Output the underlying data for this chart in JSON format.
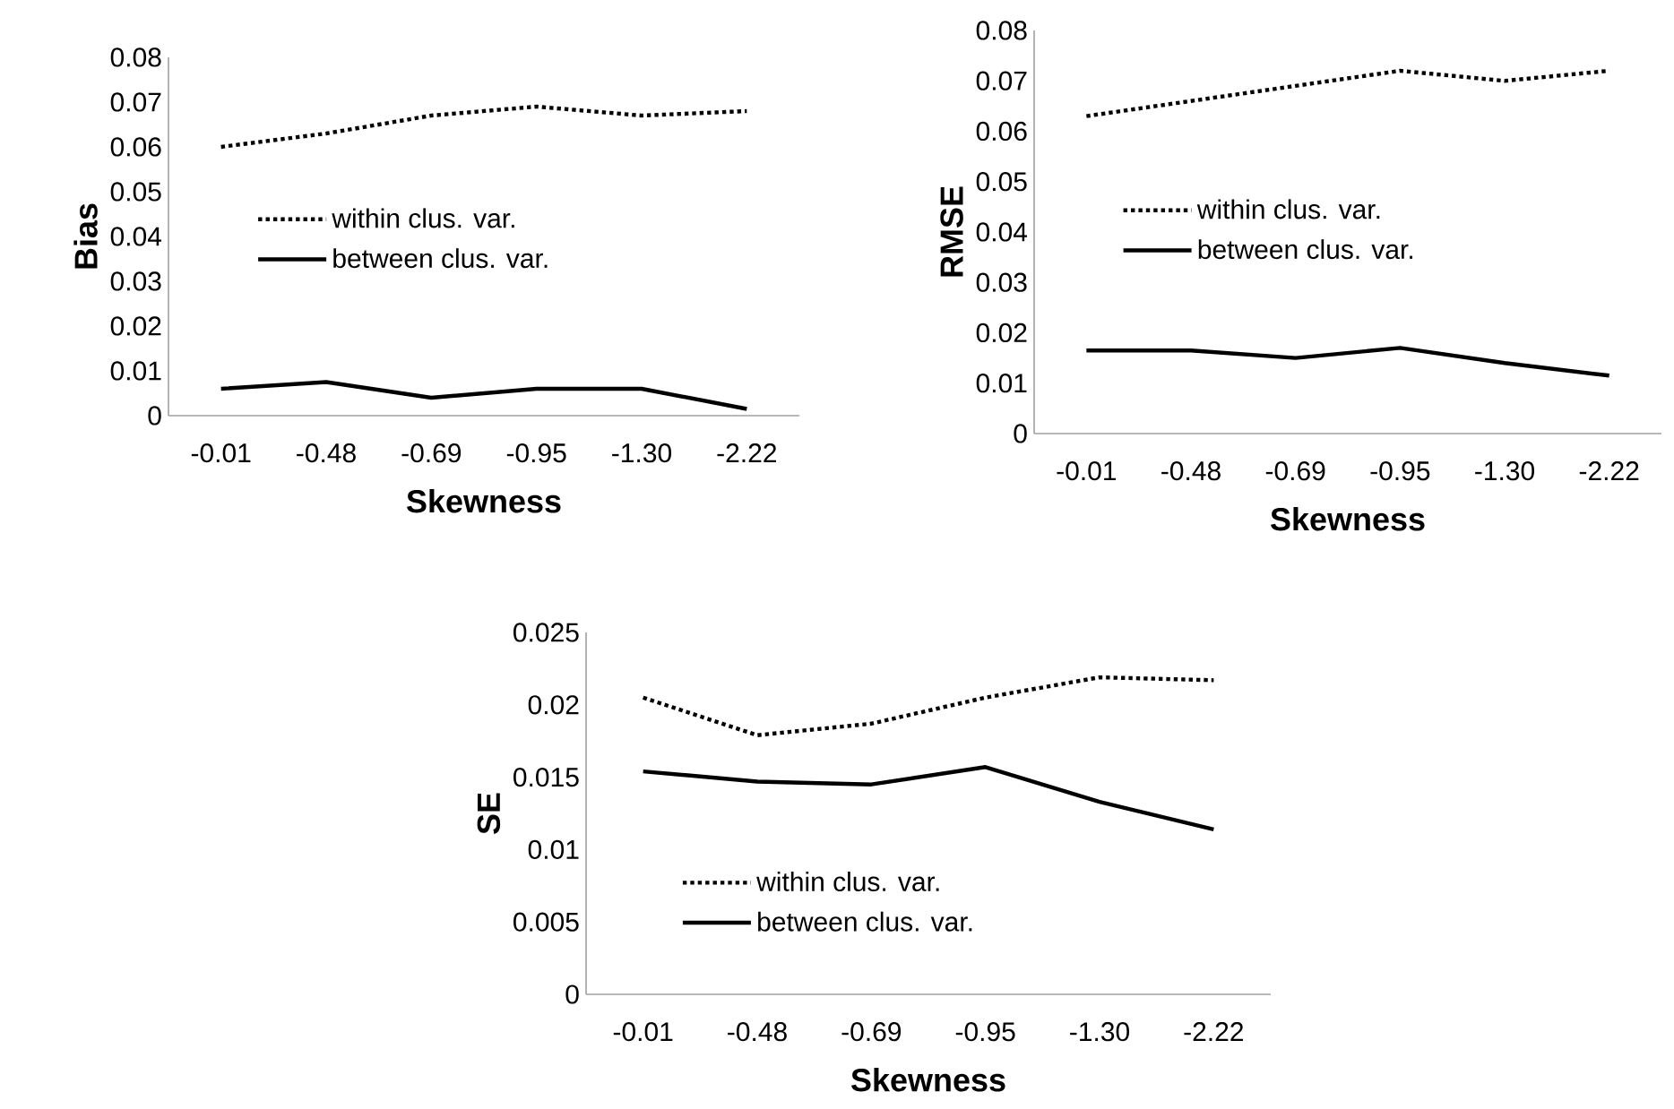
{
  "chart_data": [
    {
      "type": "line",
      "xlabel": "Skewness",
      "ylabel": "Bias",
      "categories": [
        "-0.01",
        "-0.48",
        "-0.69",
        "-0.95",
        "-1.30",
        "-2.22"
      ],
      "ylim": [
        0,
        0.08
      ],
      "yticks": [
        0,
        0.01,
        0.02,
        0.03,
        0.04,
        0.05,
        0.06,
        0.07,
        0.08
      ],
      "legend": "left",
      "series": [
        {
          "name": "within clus. var.",
          "color": "#000000",
          "line_style": "dotted",
          "values": [
            0.06,
            0.063,
            0.067,
            0.069,
            0.067,
            0.068
          ]
        },
        {
          "name": "between clus. var.",
          "color": "#000000",
          "line_style": "solid",
          "values": [
            0.006,
            0.0075,
            0.004,
            0.006,
            0.006,
            0.0015
          ]
        }
      ]
    },
    {
      "type": "line",
      "xlabel": "Skewness",
      "ylabel": "RMSE",
      "categories": [
        "-0.01",
        "-0.48",
        "-0.69",
        "-0.95",
        "-1.30",
        "-2.22"
      ],
      "ylim": [
        0,
        0.08
      ],
      "yticks": [
        0,
        0.01,
        0.02,
        0.03,
        0.04,
        0.05,
        0.06,
        0.07,
        0.08
      ],
      "legend": "left",
      "series": [
        {
          "name": "within clus. var.",
          "color": "#000000",
          "line_style": "dotted",
          "values": [
            0.063,
            0.066,
            0.069,
            0.072,
            0.07,
            0.072
          ]
        },
        {
          "name": "between clus. var.",
          "color": "#000000",
          "line_style": "solid",
          "values": [
            0.0165,
            0.0165,
            0.015,
            0.017,
            0.014,
            0.0115
          ]
        }
      ]
    },
    {
      "type": "line",
      "xlabel": "Skewness",
      "ylabel": "SE",
      "categories": [
        "-0.01",
        "-0.48",
        "-0.69",
        "-0.95",
        "-1.30",
        "-2.22"
      ],
      "ylim": [
        0,
        0.025
      ],
      "yticks": [
        0,
        0.005,
        0.01,
        0.015,
        0.02,
        0.025
      ],
      "legend": "bottom left",
      "series": [
        {
          "name": "within clus. var.",
          "color": "#000000",
          "line_style": "dotted",
          "values": [
            0.0205,
            0.0179,
            0.0187,
            0.0205,
            0.0219,
            0.0217
          ]
        },
        {
          "name": "between clus. var.",
          "color": "#000000",
          "line_style": "solid",
          "values": [
            0.0154,
            0.0147,
            0.0145,
            0.0157,
            0.0133,
            0.0114
          ]
        }
      ]
    }
  ]
}
